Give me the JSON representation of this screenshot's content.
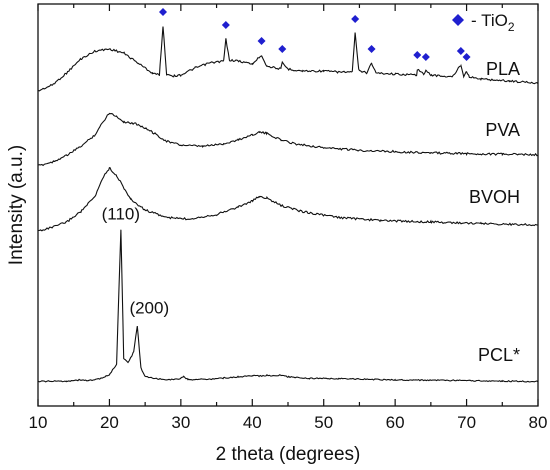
{
  "chart_data": {
    "type": "line",
    "xlabel": "2 theta (degrees)",
    "ylabel": "Intensity (a.u.)",
    "xlim": [
      10,
      80
    ],
    "x_ticks": [
      10,
      20,
      30,
      40,
      50,
      60,
      70,
      80
    ],
    "y_ticks_shown": false,
    "grid": false,
    "legend": {
      "marker": "diamond",
      "text": "- TiO",
      "subscript": "2",
      "color": "#1f1fcf",
      "placement": "top-right"
    },
    "series": [
      {
        "name": "PLA",
        "color": "#111111",
        "points": [
          [
            10,
            0.45
          ],
          [
            12,
            0.75
          ],
          [
            14,
            1.35
          ],
          [
            16,
            2.05
          ],
          [
            18,
            2.45
          ],
          [
            20,
            2.55
          ],
          [
            22,
            2.35
          ],
          [
            24,
            1.85
          ],
          [
            26,
            1.35
          ],
          [
            27,
            1.25
          ],
          [
            27.5,
            3.7
          ],
          [
            28,
            1.3
          ],
          [
            29,
            1.2
          ],
          [
            30,
            1.25
          ],
          [
            32,
            1.6
          ],
          [
            34,
            1.85
          ],
          [
            36,
            1.95
          ],
          [
            36.3,
            3.05
          ],
          [
            36.8,
            2.0
          ],
          [
            38,
            1.95
          ],
          [
            40,
            1.8
          ],
          [
            41.3,
            2.25
          ],
          [
            42,
            1.7
          ],
          [
            44,
            1.55
          ],
          [
            44.2,
            1.85
          ],
          [
            45,
            1.55
          ],
          [
            47,
            1.45
          ],
          [
            50,
            1.45
          ],
          [
            52,
            1.4
          ],
          [
            54,
            1.4
          ],
          [
            54.4,
            3.35
          ],
          [
            54.9,
            1.5
          ],
          [
            56,
            1.35
          ],
          [
            56.7,
            1.85
          ],
          [
            57.3,
            1.35
          ],
          [
            60,
            1.3
          ],
          [
            63,
            1.25
          ],
          [
            63.1,
            1.55
          ],
          [
            64,
            1.3
          ],
          [
            64.3,
            1.45
          ],
          [
            65,
            1.25
          ],
          [
            68,
            1.15
          ],
          [
            69.2,
            1.75
          ],
          [
            69.6,
            1.2
          ],
          [
            70,
            1.45
          ],
          [
            70.4,
            1.15
          ],
          [
            72,
            1.05
          ],
          [
            76,
            0.95
          ],
          [
            80,
            0.85
          ]
        ]
      },
      {
        "name": "PVA",
        "color": "#111111",
        "points": [
          [
            10,
            0.35
          ],
          [
            12,
            0.5
          ],
          [
            14,
            0.75
          ],
          [
            16,
            1.1
          ],
          [
            18,
            1.55
          ],
          [
            19,
            2.0
          ],
          [
            20,
            2.4
          ],
          [
            21,
            2.25
          ],
          [
            22,
            2.05
          ],
          [
            24,
            1.95
          ],
          [
            26,
            1.65
          ],
          [
            28,
            1.3
          ],
          [
            30,
            1.15
          ],
          [
            33,
            1.1
          ],
          [
            36,
            1.2
          ],
          [
            38,
            1.35
          ],
          [
            40,
            1.55
          ],
          [
            41,
            1.65
          ],
          [
            42,
            1.6
          ],
          [
            44,
            1.35
          ],
          [
            46,
            1.2
          ],
          [
            50,
            1.05
          ],
          [
            55,
            0.95
          ],
          [
            60,
            0.9
          ],
          [
            65,
            0.85
          ],
          [
            70,
            0.82
          ],
          [
            75,
            0.8
          ],
          [
            80,
            0.78
          ]
        ]
      },
      {
        "name": "BVOH",
        "color": "#111111",
        "points": [
          [
            10,
            0.3
          ],
          [
            12,
            0.42
          ],
          [
            14,
            0.6
          ],
          [
            16,
            0.95
          ],
          [
            18,
            1.45
          ],
          [
            19,
            2.05
          ],
          [
            20,
            2.4
          ],
          [
            21,
            2.15
          ],
          [
            22,
            1.75
          ],
          [
            23,
            1.35
          ],
          [
            25,
            1.0
          ],
          [
            28,
            0.75
          ],
          [
            31,
            0.7
          ],
          [
            35,
            0.85
          ],
          [
            38,
            1.1
          ],
          [
            40,
            1.3
          ],
          [
            41,
            1.45
          ],
          [
            42,
            1.4
          ],
          [
            44,
            1.15
          ],
          [
            47,
            0.95
          ],
          [
            52,
            0.75
          ],
          [
            58,
            0.65
          ],
          [
            65,
            0.6
          ],
          [
            72,
            0.55
          ],
          [
            80,
            0.5
          ]
        ]
      },
      {
        "name": "PCL*",
        "color": "#111111",
        "points": [
          [
            10,
            0.1
          ],
          [
            14,
            0.12
          ],
          [
            16,
            0.2
          ],
          [
            17,
            0.15
          ],
          [
            19,
            0.3
          ],
          [
            20,
            0.55
          ],
          [
            21,
            1.2
          ],
          [
            21.6,
            9.9
          ],
          [
            22,
            1.6
          ],
          [
            22.6,
            1.3
          ],
          [
            23.4,
            2.0
          ],
          [
            23.9,
            3.7
          ],
          [
            24.4,
            1.0
          ],
          [
            25,
            0.4
          ],
          [
            27,
            0.25
          ],
          [
            29,
            0.22
          ],
          [
            30,
            0.3
          ],
          [
            30.4,
            0.4
          ],
          [
            31,
            0.22
          ],
          [
            34,
            0.25
          ],
          [
            36,
            0.32
          ],
          [
            38,
            0.4
          ],
          [
            40,
            0.48
          ],
          [
            41,
            0.45
          ],
          [
            42,
            0.5
          ],
          [
            43,
            0.46
          ],
          [
            44,
            0.5
          ],
          [
            45,
            0.4
          ],
          [
            48,
            0.3
          ],
          [
            52,
            0.28
          ],
          [
            55,
            0.25
          ],
          [
            60,
            0.2
          ],
          [
            65,
            0.18
          ],
          [
            70,
            0.15
          ],
          [
            75,
            0.12
          ],
          [
            80,
            0.1
          ]
        ]
      }
    ],
    "tio2_markers": [
      27.5,
      36.3,
      41.3,
      44.2,
      54.4,
      56.7,
      63.1,
      64.3,
      69.2,
      70.0
    ],
    "peak_labels": [
      {
        "text": "(110)",
        "x": 21.6
      },
      {
        "text": "(200)",
        "x": 23.9
      }
    ]
  }
}
